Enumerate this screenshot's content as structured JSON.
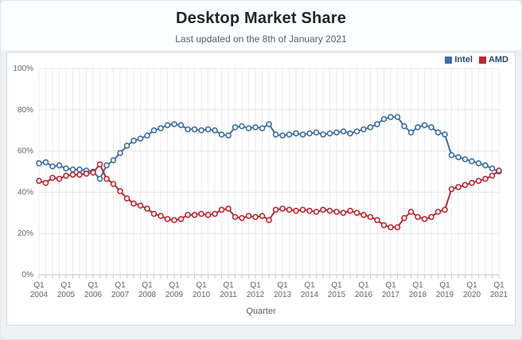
{
  "header": {
    "title": "Desktop Market Share",
    "subtitle": "Last updated on the 8th of January 2021"
  },
  "chart_data": {
    "type": "line",
    "title": "Desktop Market Share",
    "subtitle": "Last updated on the 8th of January 2021",
    "xlabel": "Quarter",
    "ylabel": "",
    "ylim": [
      0,
      100
    ],
    "grid": true,
    "legend_position": "top-right",
    "x_note": "quarterly data from Q1 2004 to Q1 2021, year labels shown at each Q1",
    "y_ticks": [
      "0%",
      "20%",
      "40%",
      "60%",
      "80%",
      "100%"
    ],
    "x_ticks": [
      "Q1 2004",
      "Q1 2005",
      "Q1 2006",
      "Q1 2007",
      "Q1 2008",
      "Q1 2009",
      "Q1 2010",
      "Q1 2011",
      "Q1 2012",
      "Q1 2013",
      "Q1 2014",
      "Q1 2015",
      "Q1 2016",
      "Q1 2017",
      "Q1 2018",
      "Q1 2019",
      "Q1 2020",
      "Q1 2021"
    ],
    "series": [
      {
        "name": "Intel",
        "color": "#3c6ea5",
        "values": [
          54,
          54.5,
          52.5,
          53,
          51.5,
          51,
          51,
          50.5,
          50,
          46.5,
          53,
          55.5,
          59,
          62.5,
          65,
          66,
          67.5,
          70,
          71,
          72.5,
          73,
          72.5,
          70.5,
          70.5,
          70,
          70.5,
          70,
          68,
          67.5,
          71.5,
          72,
          71,
          71.5,
          71,
          73,
          68,
          67.5,
          68,
          68.5,
          68,
          68.5,
          69,
          68,
          68.5,
          69,
          69.5,
          68.5,
          69.5,
          70.5,
          71.5,
          73,
          75.5,
          76.5,
          76.5,
          72,
          69,
          71.5,
          72.5,
          71.5,
          69,
          68,
          58,
          57,
          56,
          55,
          54,
          53,
          51.5,
          50
        ]
      },
      {
        "name": "AMD",
        "color": "#bc2830",
        "values": [
          45.5,
          44.5,
          47,
          46.5,
          48,
          48.5,
          48.5,
          49,
          49.5,
          53.5,
          46.5,
          44,
          40.5,
          37,
          34.5,
          33.5,
          32,
          29.5,
          28.5,
          27,
          26.5,
          27,
          29,
          29,
          29.5,
          29,
          29.5,
          31.5,
          32,
          28,
          27.5,
          28.5,
          28,
          28.5,
          26.5,
          31.5,
          32,
          31.5,
          31,
          31.5,
          31,
          30.5,
          31.5,
          31,
          30.5,
          30,
          31,
          30,
          29,
          28,
          26.5,
          24,
          23,
          23,
          27.5,
          30.5,
          28,
          27,
          28,
          30.5,
          31.5,
          41.5,
          42.5,
          43.5,
          44.5,
          45.5,
          46.5,
          48,
          50.5
        ]
      }
    ]
  }
}
